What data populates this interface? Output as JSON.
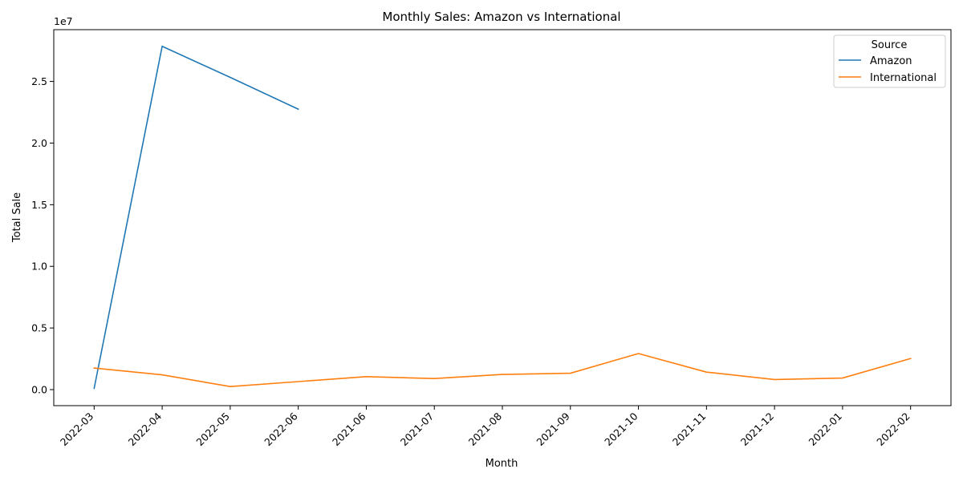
{
  "chart_data": {
    "type": "line",
    "title": "Monthly Sales: Amazon vs International",
    "xlabel": "Month",
    "ylabel": "Total Sale",
    "offset_text": "1e7",
    "categories": [
      "2022-03",
      "2022-04",
      "2022-05",
      "2022-06",
      "2021-06",
      "2021-07",
      "2021-08",
      "2021-09",
      "2021-10",
      "2021-11",
      "2021-12",
      "2022-01",
      "2022-02"
    ],
    "yticks": [
      0,
      5000000,
      10000000,
      15000000,
      20000000,
      25000000
    ],
    "ytick_labels": [
      "0.0",
      "0.5",
      "1.0",
      "1.5",
      "2.0",
      "2.5"
    ],
    "ylim": [
      -1300000,
      29200000
    ],
    "grid": false,
    "legend": {
      "title": "Source",
      "placement": "top-right"
    },
    "series": [
      {
        "name": "Amazon",
        "color": "#1f77b4",
        "values": [
          100000,
          27850000,
          25330000,
          22750000,
          null,
          null,
          null,
          null,
          null,
          null,
          null,
          null,
          null
        ]
      },
      {
        "name": "International",
        "color": "#ff7f0e",
        "values": [
          1750000,
          1200000,
          250000,
          650000,
          1050000,
          900000,
          1230000,
          1330000,
          2930000,
          1420000,
          820000,
          940000,
          2520000
        ]
      }
    ]
  }
}
